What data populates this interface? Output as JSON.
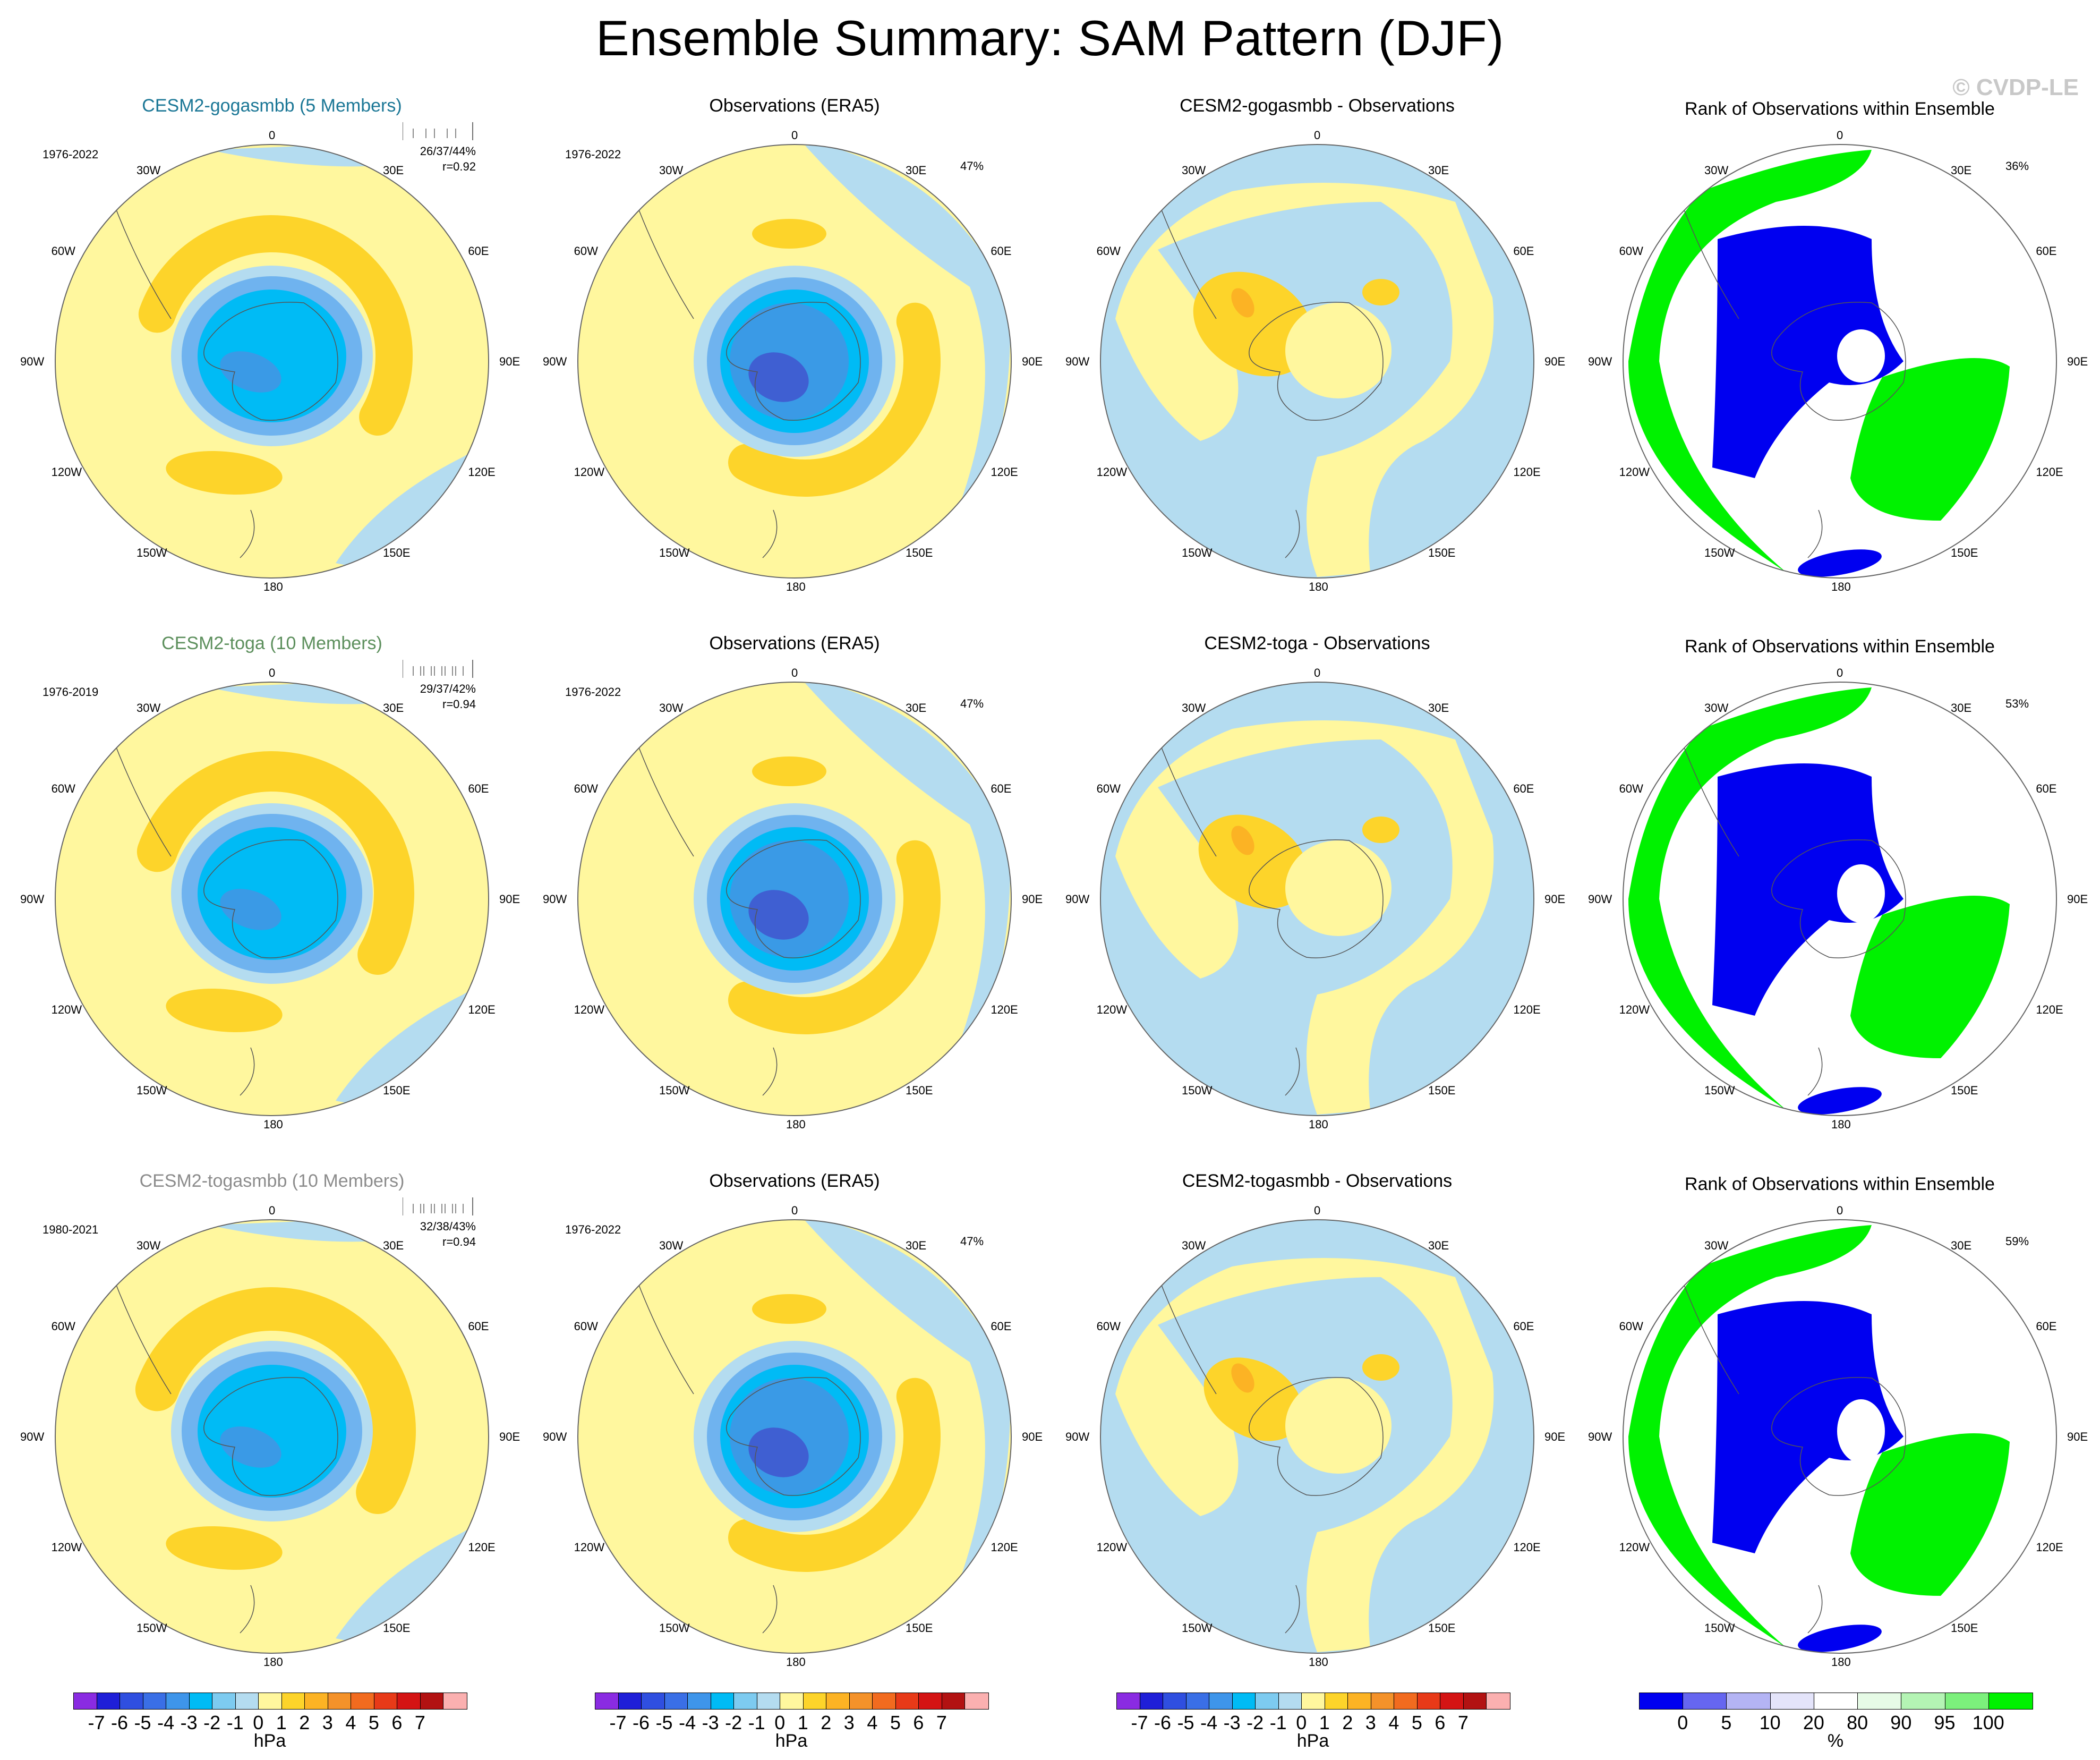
{
  "page_title": "Ensemble Summary: SAM Pattern (DJF)",
  "watermark": "© CVDP-LE",
  "colors": {
    "model_title_row1": "#1b7796",
    "model_title_row2": "#5c8f5c",
    "model_title_row3": "#8c8c8c",
    "ocean_neg": "#b4dcf0",
    "land_pos": "#fff79e",
    "pos1": "#fdd42a",
    "pos2": "#fcb324",
    "pos3": "#f4922a",
    "neg_light": "#9ec8ea",
    "neg1": "#6fb3ef",
    "neg2": "#00bbf5",
    "neg3": "#3a9ae6",
    "neg4": "#2f7fe0",
    "neg5": "#3f5fd2",
    "rank_low": "#0000f0",
    "rank_high": "#00f200"
  },
  "lon_labels": {
    "top": "0",
    "bottom": "180",
    "right": [
      "30E",
      "60E",
      "90E",
      "120E",
      "150E"
    ],
    "left": [
      "30W",
      "60W",
      "90W",
      "120W",
      "150W"
    ]
  },
  "rows": [
    {
      "model": {
        "title": "CESM2-gogasmbb (5 Members)",
        "period": "1976-2022",
        "stats": "26/37/44%",
        "corr": "r=0.92"
      },
      "obs": {
        "title": "Observations (ERA5)",
        "period": "1976-2022",
        "pct": "47%"
      },
      "diff": {
        "title": "CESM2-gogasmbb - Observations"
      },
      "rank": {
        "title": "Rank of Observations within Ensemble",
        "pct": "36%"
      }
    },
    {
      "model": {
        "title": "CESM2-toga (10 Members)",
        "period": "1976-2019",
        "stats": "29/37/42%",
        "corr": "r=0.94"
      },
      "obs": {
        "title": "Observations (ERA5)",
        "period": "1976-2022",
        "pct": "47%"
      },
      "diff": {
        "title": "CESM2-toga - Observations"
      },
      "rank": {
        "title": "Rank of Observations within Ensemble",
        "pct": "53%"
      }
    },
    {
      "model": {
        "title": "CESM2-togasmbb (10 Members)",
        "period": "1980-2021",
        "stats": "32/38/43%",
        "corr": "r=0.94"
      },
      "obs": {
        "title": "Observations (ERA5)",
        "period": "1976-2022",
        "pct": "47%"
      },
      "diff": {
        "title": "CESM2-togasmbb - Observations"
      },
      "rank": {
        "title": "Rank of Observations within Ensemble",
        "pct": "59%"
      }
    }
  ],
  "chart_data": {
    "type": "heatmap",
    "title": "Ensemble Summary: SAM Pattern (DJF)",
    "projection": "south polar stereographic",
    "variable": "SAM regression pattern (sea level pressure)",
    "colorbar_hpa": {
      "unit": "hPa",
      "levels": [
        "-7",
        "-6",
        "-5",
        "-4",
        "-3",
        "-2",
        "-1",
        "0",
        "1",
        "2",
        "3",
        "4",
        "5",
        "6",
        "7"
      ],
      "colors": [
        "#8a2be2",
        "#1f1fd8",
        "#2f4fe0",
        "#3a6fe6",
        "#3e95ea",
        "#00bbf5",
        "#7dcbf0",
        "#b4dcf0",
        "#fff79e",
        "#fdd42a",
        "#fcb324",
        "#f4922a",
        "#f26b1f",
        "#e83a18",
        "#d41414",
        "#b21212",
        "#fbb0b0"
      ]
    },
    "colorbar_rank": {
      "unit": "%",
      "levels": [
        "0",
        "5",
        "10",
        "20",
        "80",
        "90",
        "95",
        "100"
      ],
      "colors": [
        "#0000f0",
        "#6666f0",
        "#b4b4f4",
        "#e4e4fa",
        "#ffffff",
        "#e6fbe6",
        "#b4f4b4",
        "#7cf07c",
        "#00f200"
      ]
    },
    "panels": [
      {
        "row": 1,
        "col": "model",
        "name": "CESM2-gogasmbb",
        "members": 5,
        "period": "1976-2022",
        "pct_explained_min_mean_max": [
          26,
          37,
          44
        ],
        "pattern_correlation": 0.92
      },
      {
        "row": 1,
        "col": "obs",
        "name": "ERA5",
        "period": "1976-2022",
        "pct_explained": 47
      },
      {
        "row": 1,
        "col": "rank",
        "pct": 36
      },
      {
        "row": 2,
        "col": "model",
        "name": "CESM2-toga",
        "members": 10,
        "period": "1976-2019",
        "pct_explained_min_mean_max": [
          29,
          37,
          42
        ],
        "pattern_correlation": 0.94
      },
      {
        "row": 2,
        "col": "obs",
        "name": "ERA5",
        "period": "1976-2022",
        "pct_explained": 47
      },
      {
        "row": 2,
        "col": "rank",
        "pct": 53
      },
      {
        "row": 3,
        "col": "model",
        "name": "CESM2-togasmbb",
        "members": 10,
        "period": "1980-2021",
        "pct_explained_min_mean_max": [
          32,
          38,
          43
        ],
        "pattern_correlation": 0.94
      },
      {
        "row": 3,
        "col": "obs",
        "name": "ERA5",
        "period": "1976-2022",
        "pct_explained": 47
      },
      {
        "row": 3,
        "col": "rank",
        "pct": 59
      }
    ]
  }
}
